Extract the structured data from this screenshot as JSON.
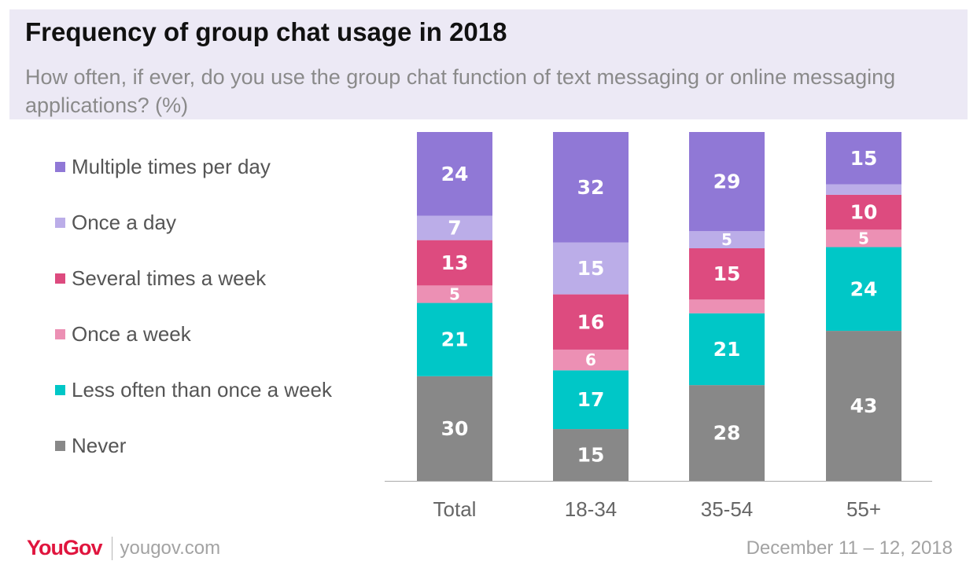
{
  "chart_data": {
    "type": "bar",
    "stacked": true,
    "title": "Frequency of group chat usage in 2018",
    "subtitle": "How often, if ever, do you use the group chat function of text messaging or online messaging applications? (%)",
    "categories": [
      "Total",
      "18-34",
      "35-54",
      "55+"
    ],
    "series": [
      {
        "name": "Never",
        "color": "#888888",
        "values": [
          30,
          15,
          28,
          43
        ]
      },
      {
        "name": "Less often than once a week",
        "color": "#00c7c7",
        "values": [
          21,
          17,
          21,
          24
        ]
      },
      {
        "name": "Once a week",
        "color": "#ec90b4",
        "values": [
          5,
          6,
          4,
          5
        ]
      },
      {
        "name": "Several times a week",
        "color": "#dd4b7f",
        "values": [
          13,
          16,
          15,
          10
        ]
      },
      {
        "name": "Once a day",
        "color": "#bbade8",
        "values": [
          7,
          15,
          5,
          3
        ]
      },
      {
        "name": "Multiple times per day",
        "color": "#9078d6",
        "values": [
          24,
          32,
          29,
          15
        ]
      }
    ],
    "data_labels": [
      [
        "30",
        "15",
        "28",
        "43"
      ],
      [
        "21",
        "17",
        "21",
        "24"
      ],
      [
        "5",
        "6",
        "",
        "5"
      ],
      [
        "13",
        "16",
        "15",
        "10"
      ],
      [
        "7",
        "15",
        "5",
        ""
      ],
      [
        "24",
        "32",
        "29",
        "15"
      ]
    ],
    "legend_order": [
      "Multiple times per day",
      "Once a day",
      "Several times a week",
      "Once a week",
      "Less often than once a week",
      "Never"
    ],
    "legend_position": "left",
    "ylim": [
      0,
      100
    ],
    "grid": false,
    "unit": "%"
  },
  "footer": {
    "logo": "YouGov",
    "site": "yougov.com",
    "date": "December 11 – 12, 2018"
  }
}
